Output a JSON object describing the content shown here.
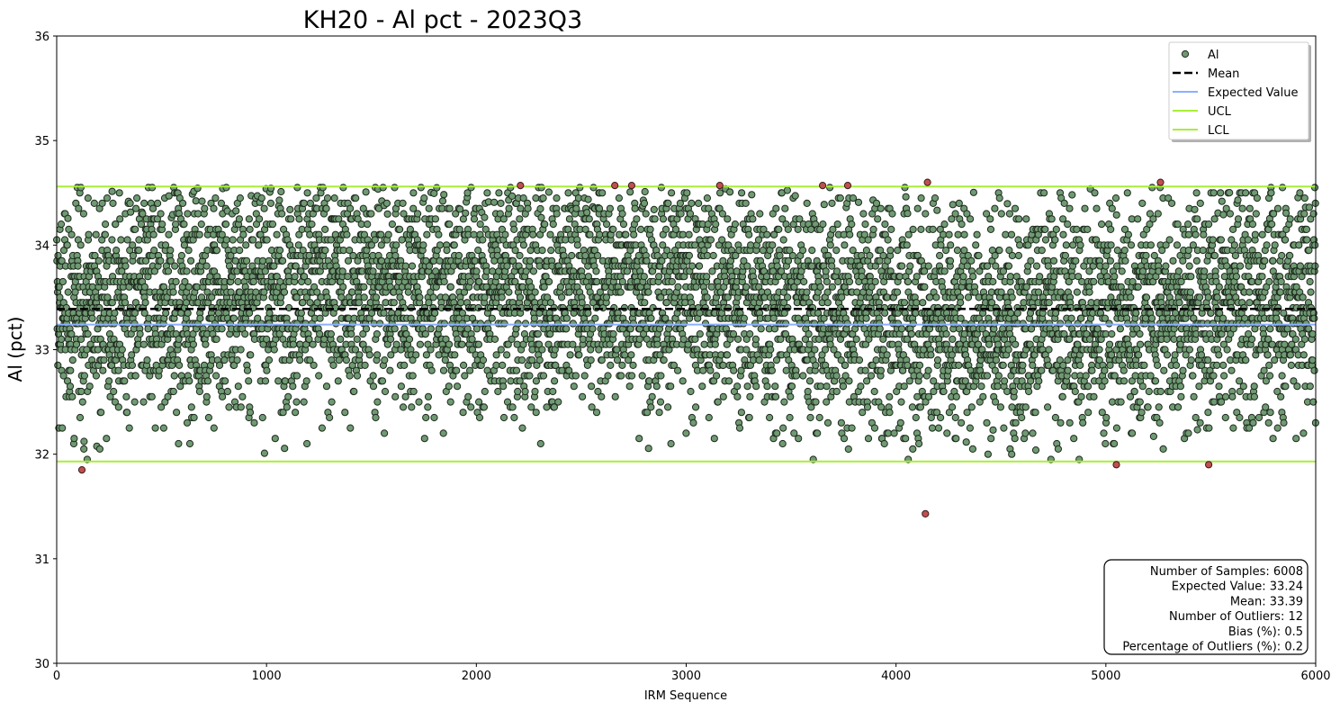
{
  "chart_data": {
    "type": "scatter",
    "title": "KH20 - Al pct - 2023Q3",
    "xlabel": "IRM Sequence",
    "ylabel": "Al (pct)",
    "xlim": [
      0,
      6000
    ],
    "ylim": [
      30,
      36
    ],
    "xticks": [
      "0",
      "1000",
      "2000",
      "3000",
      "4000",
      "5000",
      "6000"
    ],
    "yticks": [
      "30",
      "31",
      "32",
      "33",
      "34",
      "35",
      "36"
    ],
    "grid": false,
    "legend_position": "top-right",
    "series": [
      {
        "name": "Al",
        "kind": "scatter",
        "color": "#6f9a72",
        "edge": "#1f2a1f",
        "n_points": 6008,
        "mean": 33.39,
        "note_range": [
          31.95,
          34.55
        ]
      },
      {
        "name": "Mean",
        "kind": "hline",
        "y": 33.39,
        "color": "#000000",
        "style": "dashed"
      },
      {
        "name": "Expected Value",
        "kind": "hline",
        "y": 33.24,
        "color": "#8ab0ff",
        "style": "solid"
      },
      {
        "name": "UCL",
        "kind": "hline",
        "y": 34.56,
        "color": "#a8ee3a",
        "style": "solid"
      },
      {
        "name": "LCL",
        "kind": "hline",
        "y": 31.93,
        "color": "#a8ee3a",
        "style": "solid"
      }
    ],
    "outliers": [
      {
        "x": 120,
        "y": 31.85
      },
      {
        "x": 2210,
        "y": 34.57
      },
      {
        "x": 2660,
        "y": 34.57
      },
      {
        "x": 2740,
        "y": 34.57
      },
      {
        "x": 3160,
        "y": 34.57
      },
      {
        "x": 3650,
        "y": 34.57
      },
      {
        "x": 3770,
        "y": 34.57
      },
      {
        "x": 4150,
        "y": 34.6
      },
      {
        "x": 4140,
        "y": 31.43
      },
      {
        "x": 5050,
        "y": 31.9
      },
      {
        "x": 5260,
        "y": 34.6
      },
      {
        "x": 5490,
        "y": 31.9
      }
    ],
    "outlier_color": "#c0504d",
    "stats": [
      "Number of Samples: 6008",
      "Expected Value: 33.24",
      "Mean: 33.39",
      "Number of Outliers: 12",
      "Bias (%): 0.5",
      "Percentage of Outliers (%): 0.2"
    ]
  }
}
